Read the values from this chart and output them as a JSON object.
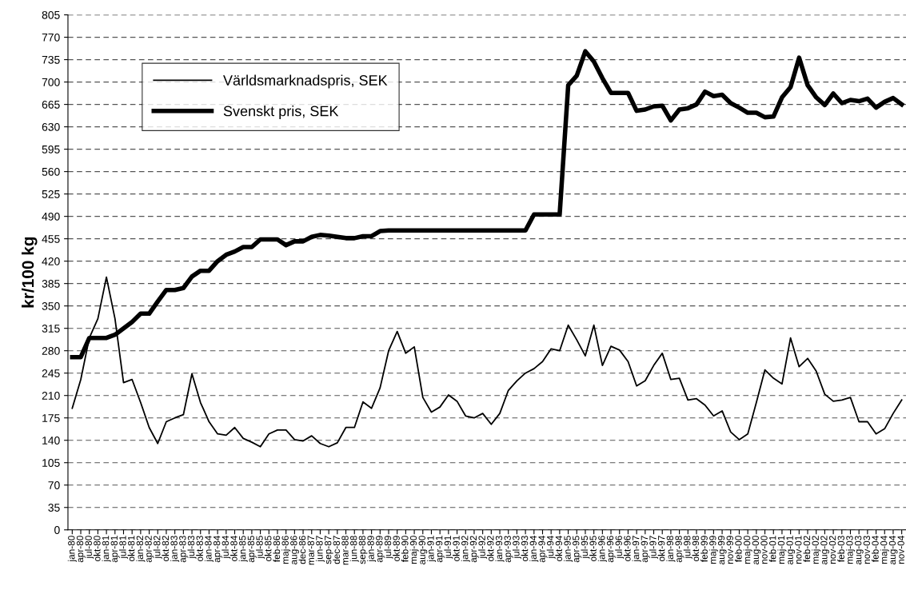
{
  "chart_data": {
    "type": "line",
    "ylabel": "kr/100 kg",
    "categories": [
      "jan-80",
      "apr-80",
      "jul-80",
      "okt-80",
      "jan-81",
      "apr-81",
      "jul-81",
      "okt-81",
      "jan-82",
      "apr-82",
      "jul-82",
      "okt-82",
      "jan-83",
      "apr-83",
      "jul-83",
      "okt-83",
      "jan-84",
      "apr-84",
      "jul-84",
      "okt-84",
      "jan-85",
      "apr-85",
      "jul-85",
      "okt-85",
      "feb-86",
      "maj-86",
      "aug-86",
      "dec-86",
      "mar-87",
      "jun-87",
      "sep-87",
      "dec-87",
      "mar-88",
      "jun-88",
      "sep-88",
      "jan-89",
      "apr-89",
      "jul-89",
      "okt-89",
      "feb-90",
      "maj-90",
      "aug-90",
      "jan-91",
      "apr-91",
      "jul-91",
      "okt-91",
      "jan-92",
      "apr-92",
      "jul-92",
      "okt-92",
      "jan-93",
      "apr-93",
      "jul-93",
      "okt-93",
      "jan-94",
      "apr-94",
      "jul-94",
      "okt-94",
      "jan-95",
      "apr-95",
      "jul-95",
      "okt-95",
      "jan-96",
      "apr-96",
      "jul-96",
      "okt-96",
      "jan-97",
      "apr-97",
      "jul-97",
      "okt-97",
      "jan-98",
      "apr-98",
      "jul-98",
      "okt-98",
      "feb-99",
      "maj-99",
      "aug-99",
      "nov-99",
      "feb-00",
      "maj-00",
      "aug-00",
      "nov-00",
      "feb-01",
      "maj-01",
      "aug-01",
      "nov-01",
      "feb-02",
      "maj-02",
      "aug-02",
      "nov-02",
      "feb-03",
      "maj-03",
      "aug-03",
      "nov-03",
      "feb-04",
      "maj-04",
      "aug-04",
      "nov-04"
    ],
    "series": [
      {
        "name": "Världsmarknadspris, SEK",
        "color": "#000000",
        "values": [
          190,
          235,
          300,
          330,
          395,
          330,
          230,
          235,
          199,
          160,
          135,
          169,
          175,
          180,
          244,
          199,
          169,
          150,
          148,
          160,
          143,
          137,
          130,
          150,
          156,
          156,
          141,
          139,
          147,
          135,
          130,
          136,
          160,
          160,
          200,
          190,
          222,
          280,
          310,
          276,
          286,
          207,
          184,
          192,
          211,
          201,
          178,
          175,
          182,
          165,
          182,
          218,
          233,
          245,
          252,
          263,
          283,
          280,
          320,
          297,
          272,
          320,
          257,
          287,
          281,
          263,
          225,
          233,
          257,
          276,
          235,
          237,
          203,
          205,
          195,
          178,
          186,
          153,
          141,
          150,
          199,
          250,
          237,
          228,
          300,
          255,
          268,
          248,
          212,
          201,
          203,
          207,
          169,
          169,
          150,
          158,
          182,
          203
        ]
      },
      {
        "name": "Svenskt pris, SEK",
        "color": "#000000",
        "values": [
          270,
          270,
          300,
          300,
          300,
          305,
          315,
          325,
          338,
          338,
          357,
          375,
          375,
          378,
          396,
          405,
          405,
          420,
          430,
          435,
          442,
          442,
          454,
          454,
          454,
          445,
          451,
          451,
          458,
          461,
          460,
          458,
          456,
          456,
          459,
          459,
          467,
          468,
          468,
          468,
          468,
          468,
          468,
          468,
          468,
          468,
          468,
          468,
          468,
          468,
          468,
          468,
          468,
          468,
          493,
          493,
          493,
          493,
          695,
          710,
          748,
          732,
          706,
          683,
          683,
          683,
          655,
          657,
          662,
          663,
          640,
          657,
          659,
          665,
          685,
          678,
          680,
          667,
          660,
          652,
          652,
          645,
          646,
          676,
          692,
          738,
          695,
          676,
          664,
          682,
          667,
          672,
          670,
          674,
          660,
          669,
          675,
          665
        ]
      }
    ],
    "ylim": [
      0,
      805
    ],
    "yticks": [
      0,
      35,
      70,
      105,
      140,
      175,
      210,
      245,
      280,
      315,
      350,
      385,
      420,
      455,
      490,
      525,
      560,
      595,
      630,
      665,
      700,
      735,
      770,
      805
    ],
    "grid": "y",
    "legend": "top left",
    "marker": "none",
    "line_style": "solid"
  }
}
